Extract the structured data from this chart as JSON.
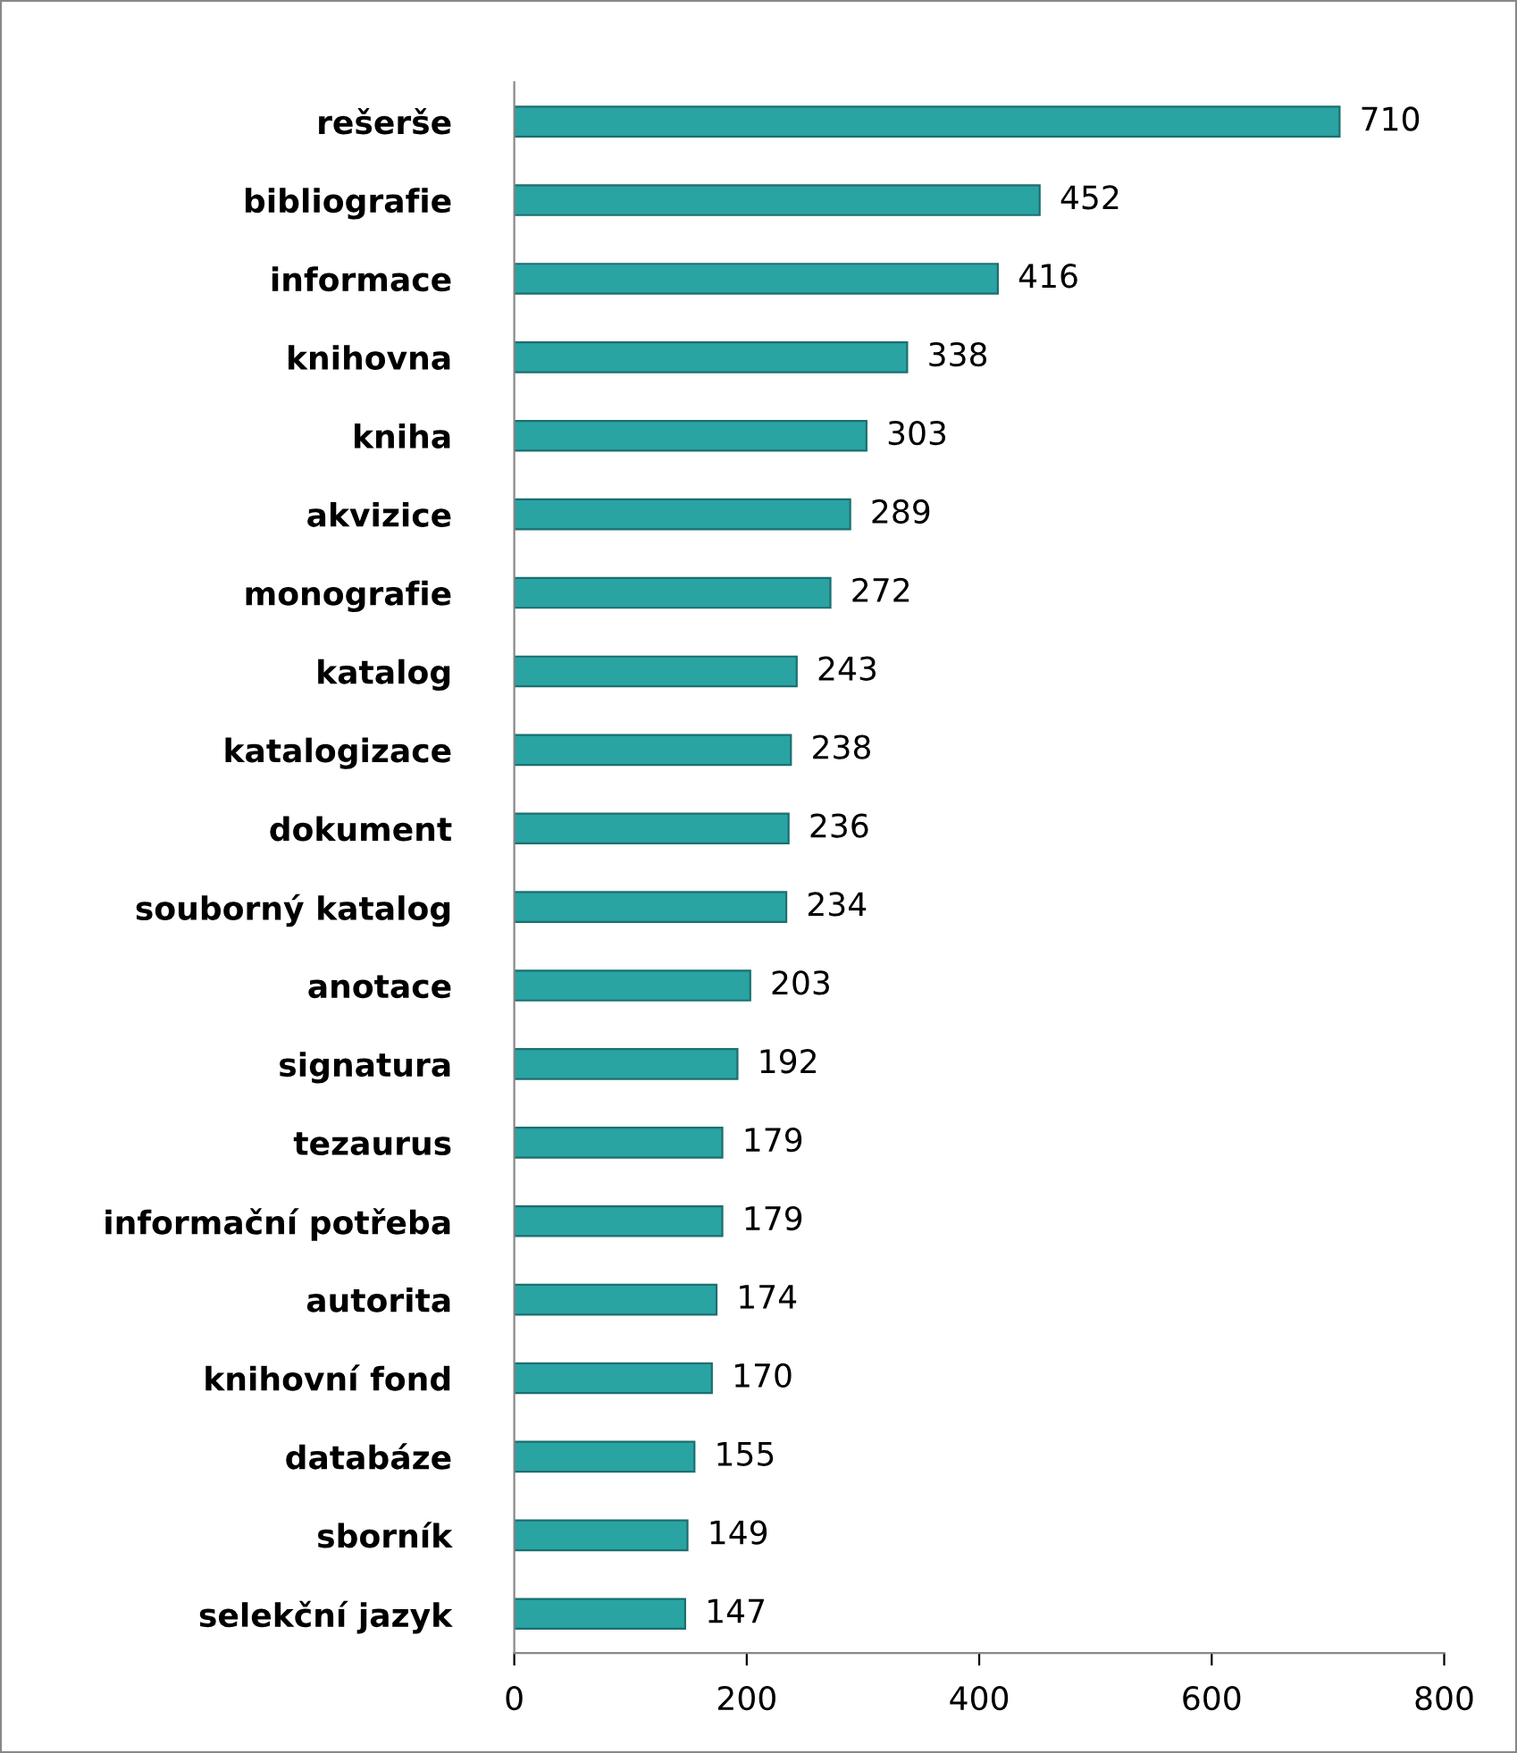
{
  "chart_data": {
    "type": "bar",
    "orientation": "horizontal",
    "categories": [
      "rešerše",
      "bibliografie",
      "informace",
      "knihovna",
      "kniha",
      "akvizice",
      "monografie",
      "katalog",
      "katalogizace",
      "dokument",
      "souborný katalog",
      "anotace",
      "signatura",
      "tezaurus",
      "informační potřeba",
      "autorita",
      "knihovní fond",
      "databáze",
      "sborník",
      "selekční jazyk"
    ],
    "values": [
      710,
      452,
      416,
      338,
      303,
      289,
      272,
      243,
      238,
      236,
      234,
      203,
      192,
      179,
      179,
      174,
      170,
      155,
      149,
      147
    ],
    "color": "#2aa3a3",
    "xlim": [
      0,
      800
    ],
    "xticks": [
      0,
      200,
      400,
      600,
      800
    ],
    "grid": false,
    "data_labels": true
  }
}
